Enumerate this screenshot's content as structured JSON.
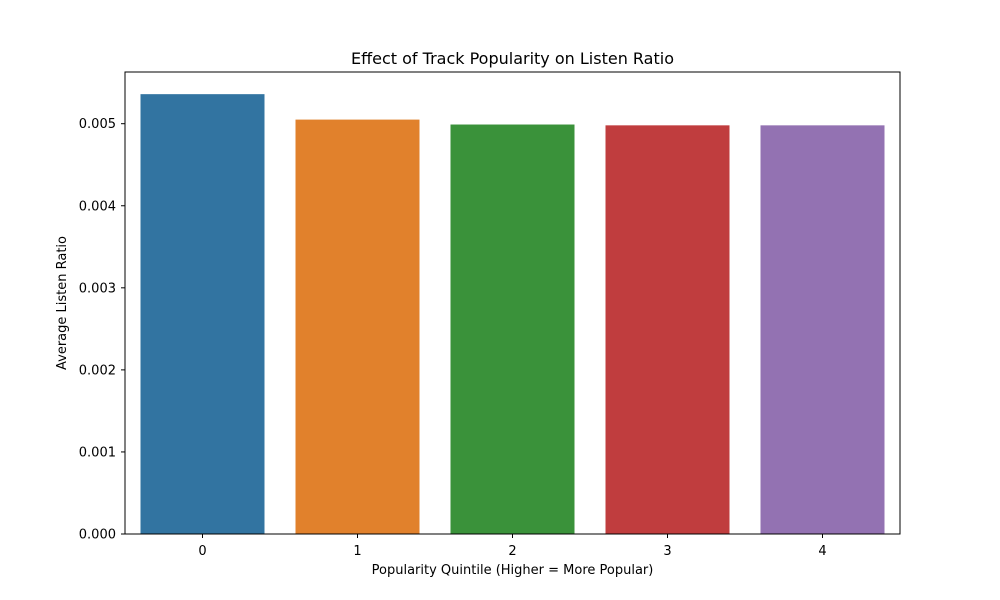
{
  "chart_data": {
    "type": "bar",
    "title": "Effect of Track Popularity on Listen Ratio",
    "xlabel": "Popularity Quintile (Higher = More Popular)",
    "ylabel": "Average Listen Ratio",
    "categories": [
      "0",
      "1",
      "2",
      "3",
      "4"
    ],
    "values": [
      0.00536,
      0.00505,
      0.00499,
      0.00498,
      0.00498
    ],
    "colors": [
      "#3274a1",
      "#e1812c",
      "#3a923a",
      "#c03d3e",
      "#9372b2"
    ],
    "yticks": [
      "0.000",
      "0.001",
      "0.002",
      "0.003",
      "0.004",
      "0.005"
    ],
    "ylim": [
      0,
      0.00563
    ],
    "grid": false,
    "legend": "none"
  }
}
